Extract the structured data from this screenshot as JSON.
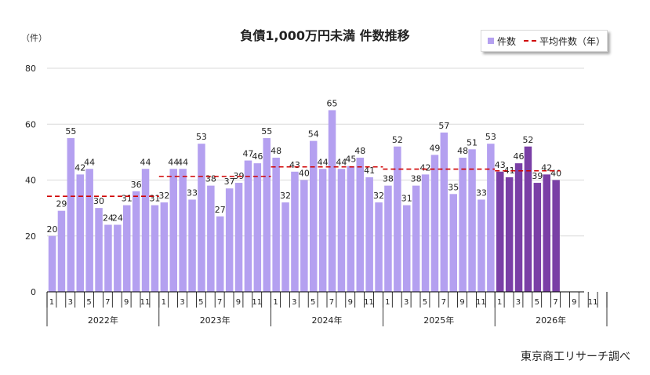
{
  "title": "負債1,000万円未満 件数推移",
  "y_unit": "（件）",
  "source_note": "東京商工リサーチ調べ",
  "legend": {
    "bar_label": "件数",
    "line_label": "平均件数（年）"
  },
  "colors": {
    "bar_light": "#b4a0f0",
    "bar_dark": "#7a3fa6",
    "avg_line": "#d00000",
    "grid": "#d9d9d9",
    "axis": "#000000"
  },
  "chart_data": {
    "type": "bar",
    "ylim": [
      0,
      80
    ],
    "yticks": [
      0,
      20,
      40,
      60,
      80
    ],
    "grid": true,
    "legend_position": "top-right",
    "month_tick_labels": [
      "1",
      "3",
      "5",
      "7",
      "9",
      "11"
    ],
    "years": [
      "2022年",
      "2023年",
      "2024年",
      "2025年",
      "2026年"
    ],
    "months_per_year": 12,
    "series": [
      {
        "name": "件数",
        "values": [
          [
            20,
            29,
            55,
            42,
            44,
            30,
            24,
            24,
            31,
            36,
            44,
            31
          ],
          [
            32,
            44,
            44,
            33,
            53,
            38,
            27,
            37,
            39,
            47,
            46,
            55
          ],
          [
            48,
            32,
            43,
            40,
            54,
            44,
            65,
            44,
            45,
            48,
            41,
            32
          ],
          [
            38,
            52,
            31,
            38,
            42,
            49,
            57,
            35,
            48,
            51,
            33,
            53
          ],
          [
            43,
            41,
            46,
            52,
            39,
            42,
            40
          ]
        ]
      },
      {
        "name": "平均件数（年）",
        "values": [
          34.2,
          41.3,
          44.7,
          43.9,
          43.3
        ]
      }
    ]
  }
}
